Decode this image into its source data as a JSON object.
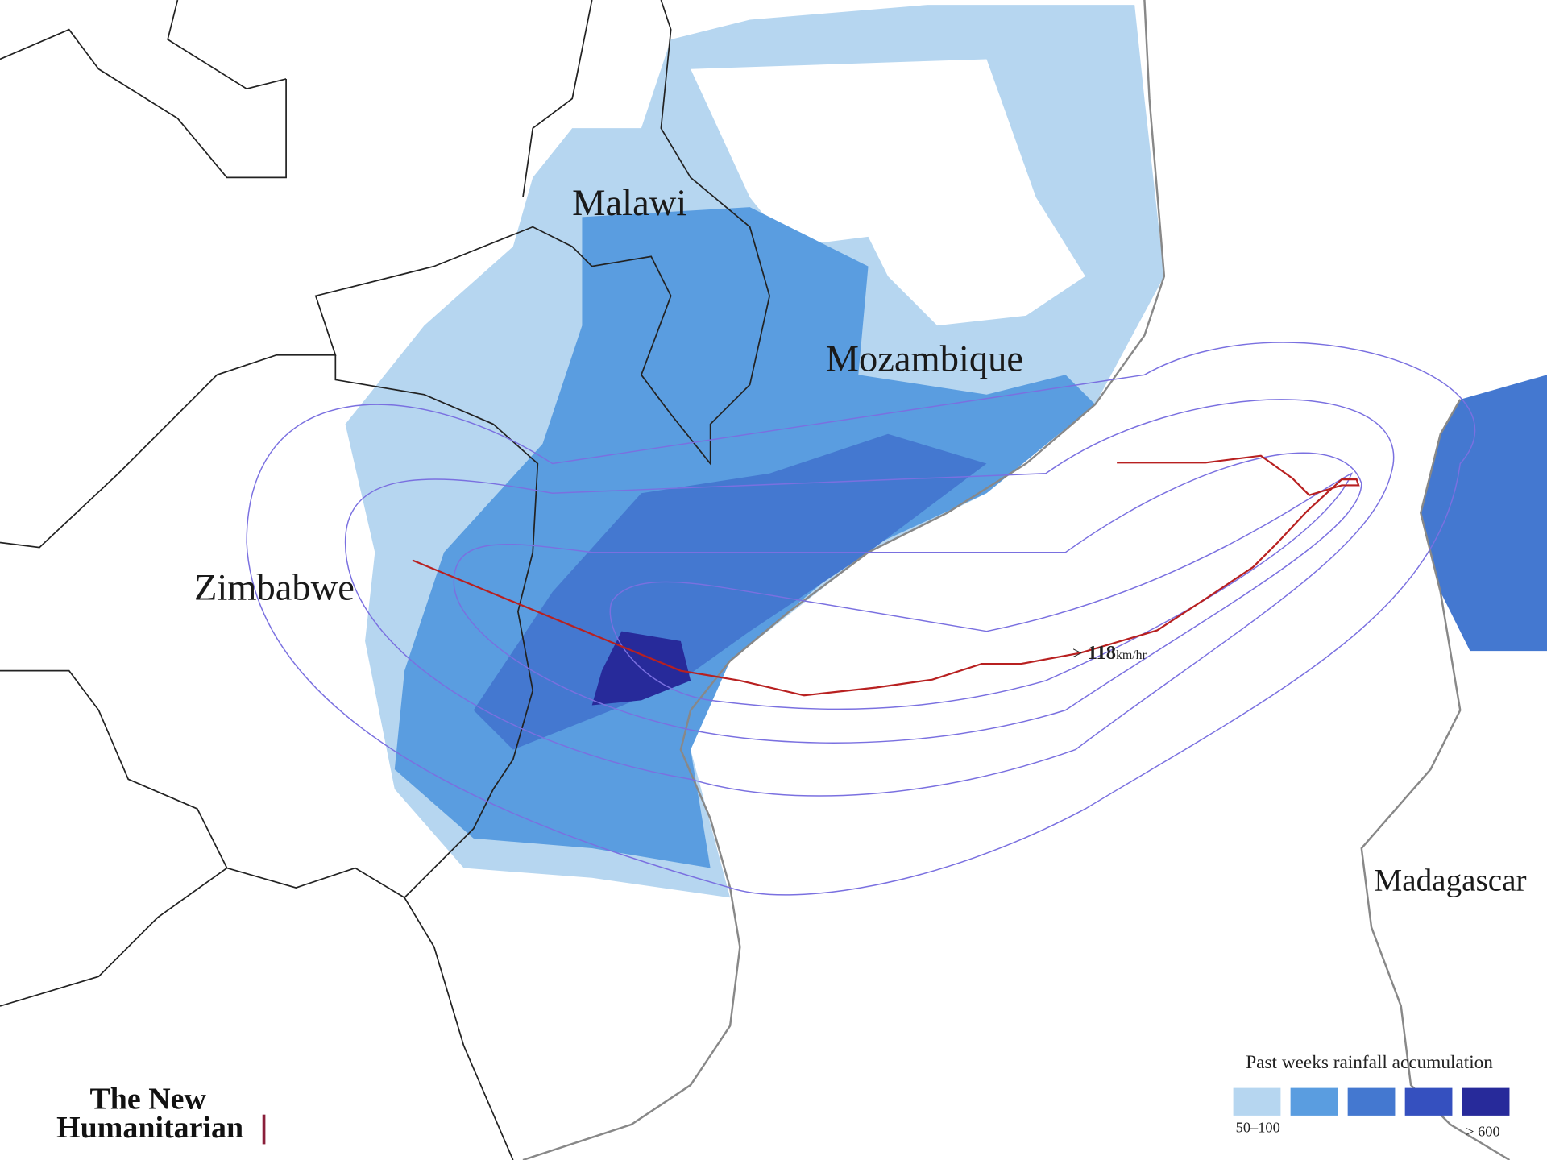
{
  "map": {
    "countries": [
      "Malawi",
      "Mozambique",
      "Zimbabwe",
      "Madagascar"
    ],
    "wind": {
      "prefix": ">",
      "value": 118,
      "unit": "km/hr"
    },
    "legend": {
      "title": "Past weeks rainfall accumulation",
      "low_label": "50–100",
      "high_label": "> 600",
      "colors": [
        "#b6d6f0",
        "#5a9de0",
        "#4478d0",
        "#3550bf",
        "#272a9a"
      ]
    },
    "logo": {
      "line1": "The New",
      "line2": "Humanitarian"
    }
  }
}
